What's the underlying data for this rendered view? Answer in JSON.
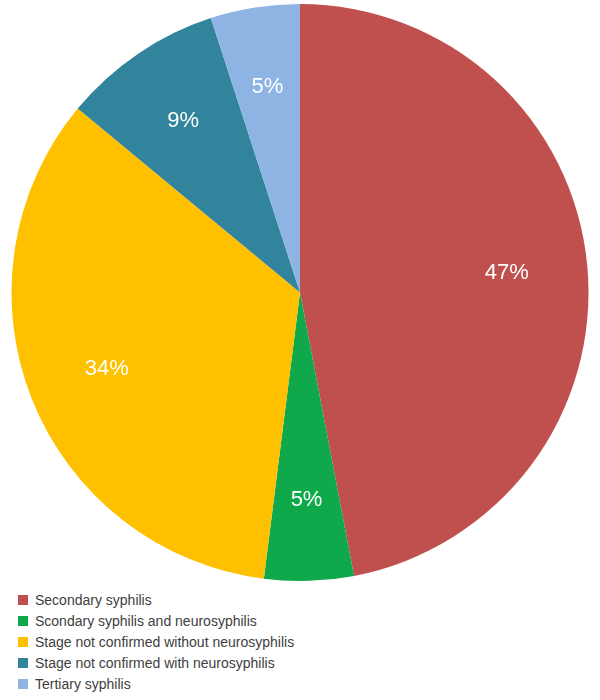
{
  "chart_data": {
    "type": "pie",
    "categories": [
      "Secondary syphilis",
      "Scondary syphilis and neurosyphilis",
      "Stage not confirmed without neurosyphilis",
      "Stage not confirmed with neurosyphilis",
      "Tertiary syphilis"
    ],
    "values": [
      47,
      5,
      34,
      9,
      5
    ],
    "value_labels": [
      "47%",
      "5%",
      "34%",
      "9%",
      "5%"
    ],
    "colors": [
      "#c0504d",
      "#0fa84b",
      "#ffc000",
      "#31849b",
      "#8db4e2"
    ],
    "data_labels": true,
    "legend": "bottom"
  }
}
